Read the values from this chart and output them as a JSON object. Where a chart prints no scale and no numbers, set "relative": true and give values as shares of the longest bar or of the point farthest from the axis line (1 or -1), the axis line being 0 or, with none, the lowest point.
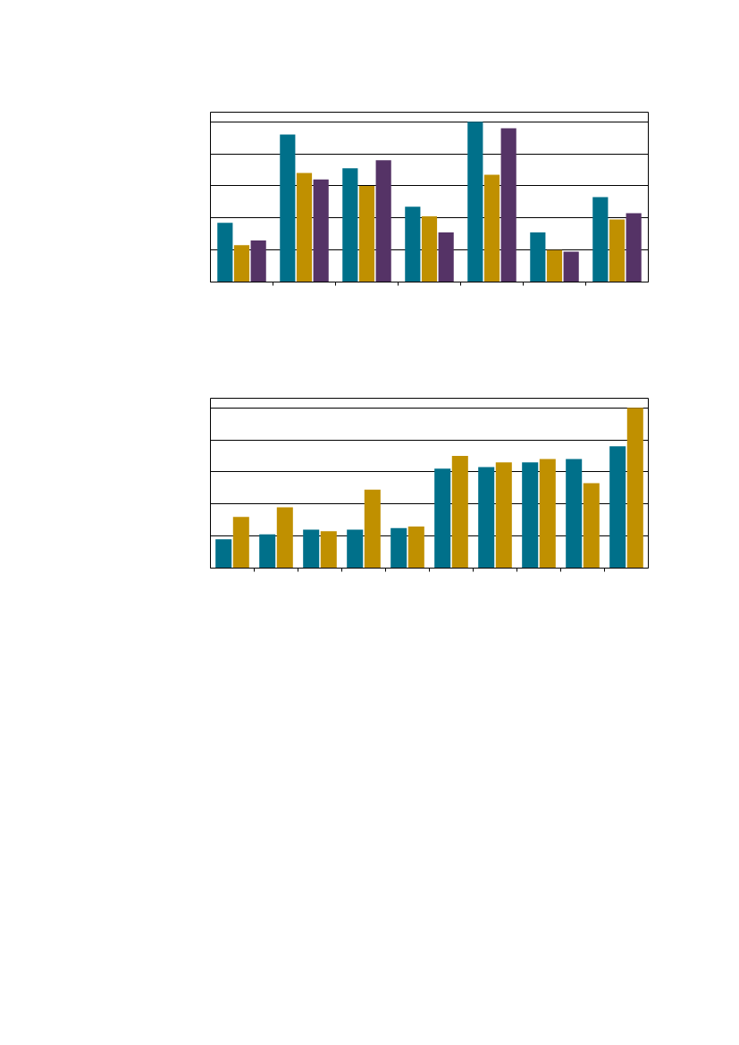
{
  "chart_data": [
    {
      "type": "bar",
      "relative": true,
      "grid": "y",
      "categories": [
        null,
        null,
        null,
        null,
        null,
        null,
        null
      ],
      "series": [
        {
          "color": "#00708a",
          "values": [
            0.37,
            0.92,
            0.71,
            0.47,
            1,
            0.31,
            0.53
          ]
        },
        {
          "color": "#c09000",
          "values": [
            0.23,
            0.68,
            0.6,
            0.41,
            0.67,
            0.2,
            0.39
          ]
        },
        {
          "color": "#553366",
          "values": [
            0.26,
            0.64,
            0.76,
            0.31,
            0.96,
            0.19,
            0.43
          ]
        }
      ]
    },
    {
      "type": "bar",
      "relative": true,
      "grid": "y",
      "categories": [
        null,
        null,
        null,
        null,
        null,
        null,
        null,
        null,
        null,
        null
      ],
      "series": [
        {
          "color": "#00708a",
          "values": [
            0.18,
            0.21,
            0.24,
            0.24,
            0.25,
            0.62,
            0.63,
            0.66,
            0.68,
            0.76
          ]
        },
        {
          "color": "#c09000",
          "values": [
            0.32,
            0.38,
            0.23,
            0.49,
            0.26,
            0.7,
            0.66,
            0.68,
            0.53,
            1
          ]
        }
      ]
    }
  ]
}
